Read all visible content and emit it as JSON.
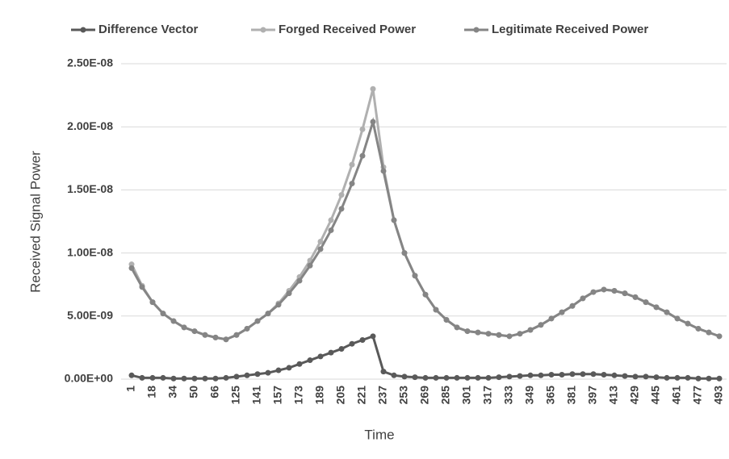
{
  "chart_data": {
    "type": "line",
    "xlabel": "Time",
    "ylabel": "Received Signal Power",
    "categories": [
      "1",
      null,
      "18",
      null,
      "34",
      null,
      "50",
      null,
      "66",
      null,
      "125",
      null,
      "141",
      null,
      "157",
      null,
      "173",
      null,
      "189",
      null,
      "205",
      null,
      "221",
      null,
      "237",
      null,
      "253",
      null,
      "269",
      null,
      "285",
      null,
      "301",
      null,
      "317",
      null,
      "333",
      null,
      "349",
      null,
      "365",
      null,
      "381",
      null,
      "397",
      null,
      "413",
      null,
      "429",
      null,
      "445",
      null,
      "461",
      null,
      "477",
      null,
      "493"
    ],
    "series": [
      {
        "name": "Difference Vector",
        "color": "#595959",
        "values": [
          3e-10,
          1e-10,
          1e-10,
          1e-10,
          5e-11,
          5e-11,
          5e-11,
          5e-11,
          5e-11,
          1e-10,
          2e-10,
          3e-10,
          4e-10,
          5e-10,
          7e-10,
          9e-10,
          1.2e-09,
          1.5e-09,
          1.8e-09,
          2.1e-09,
          2.4e-09,
          2.8e-09,
          3.1e-09,
          3.4e-09,
          6e-10,
          3e-10,
          2e-10,
          1.5e-10,
          1e-10,
          1e-10,
          1e-10,
          1e-10,
          1e-10,
          1e-10,
          1e-10,
          1.5e-10,
          2e-10,
          2.5e-10,
          3e-10,
          3e-10,
          3.5e-10,
          3.5e-10,
          4e-10,
          4e-10,
          4e-10,
          3.5e-10,
          3e-10,
          2.5e-10,
          2e-10,
          2e-10,
          1.5e-10,
          1e-10,
          1e-10,
          1e-10,
          5e-11,
          5e-11,
          5e-11
        ]
      },
      {
        "name": "Forged Received Power",
        "color": "#b0b0b0",
        "values": [
          9.1e-09,
          7.4e-09,
          6.1e-09,
          5.2e-09,
          4.6e-09,
          4.1e-09,
          3.8e-09,
          3.5e-09,
          3.3e-09,
          3.15e-09,
          3.5e-09,
          4e-09,
          4.6e-09,
          5.2e-09,
          6e-09,
          7e-09,
          8.1e-09,
          9.4e-09,
          1.09e-08,
          1.26e-08,
          1.46e-08,
          1.7e-08,
          1.98e-08,
          2.3e-08,
          1.68e-08,
          1.26e-08,
          1e-08,
          8.2e-09,
          6.7e-09,
          5.5e-09,
          4.7e-09,
          4.1e-09,
          3.8e-09,
          3.7e-09,
          3.6e-09,
          3.5e-09,
          3.4e-09,
          3.6e-09,
          3.9e-09,
          4.3e-09,
          4.8e-09,
          5.3e-09,
          5.8e-09,
          6.4e-09,
          6.9e-09,
          7.1e-09,
          7e-09,
          6.8e-09,
          6.5e-09,
          6.1e-09,
          5.7e-09,
          5.3e-09,
          4.8e-09,
          4.4e-09,
          4e-09,
          3.7e-09,
          3.4e-09
        ]
      },
      {
        "name": "Legitimate Received Power",
        "color": "#858585",
        "values": [
          8.8e-09,
          7.3e-09,
          6.1e-09,
          5.2e-09,
          4.6e-09,
          4.1e-09,
          3.8e-09,
          3.5e-09,
          3.3e-09,
          3.15e-09,
          3.5e-09,
          4e-09,
          4.6e-09,
          5.2e-09,
          5.9e-09,
          6.8e-09,
          7.8e-09,
          9e-09,
          1.03e-08,
          1.18e-08,
          1.35e-08,
          1.55e-08,
          1.77e-08,
          2.04e-08,
          1.65e-08,
          1.26e-08,
          1e-08,
          8.2e-09,
          6.7e-09,
          5.5e-09,
          4.7e-09,
          4.1e-09,
          3.8e-09,
          3.7e-09,
          3.6e-09,
          3.5e-09,
          3.4e-09,
          3.6e-09,
          3.9e-09,
          4.3e-09,
          4.8e-09,
          5.3e-09,
          5.8e-09,
          6.4e-09,
          6.9e-09,
          7.1e-09,
          7e-09,
          6.8e-09,
          6.5e-09,
          6.1e-09,
          5.7e-09,
          5.3e-09,
          4.8e-09,
          4.4e-09,
          4e-09,
          3.7e-09,
          3.4e-09
        ]
      }
    ],
    "ylim": [
      0,
      2.5e-08
    ],
    "yticks": [
      {
        "value": 0,
        "label": "0.00E+00"
      },
      {
        "value": 5e-09,
        "label": "5.00E-09"
      },
      {
        "value": 1e-08,
        "label": "1.00E-08"
      },
      {
        "value": 1.5e-08,
        "label": "1.50E-08"
      },
      {
        "value": 2e-08,
        "label": "2.00E-08"
      },
      {
        "value": 2.5e-08,
        "label": "2.50E-08"
      }
    ],
    "grid": true,
    "legend": "top"
  }
}
